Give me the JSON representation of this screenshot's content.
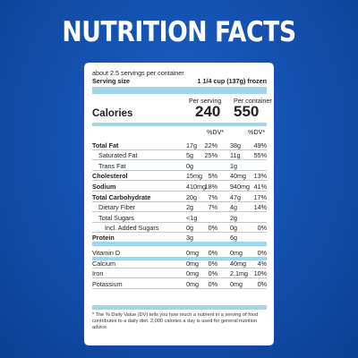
{
  "header": {
    "title": "NUTRITION FACTS"
  },
  "label": {
    "servings": "about 2.5 servings per container",
    "serving_size_label": "Serving size",
    "serving_size_value": "1 1/4 cup (137g) frozen",
    "per_serving": "Per serving",
    "per_container": "Per container",
    "calories_label": "Calories",
    "calories_serving": "240",
    "calories_container": "550",
    "dv_header_1": "%DV*",
    "dv_header_2": "%DV*",
    "rows": [
      {
        "name": "Total Fat",
        "a": "17g",
        "b": "22%",
        "c": "38g",
        "d": "49%"
      },
      {
        "name": "Saturated Fat",
        "a": "5g",
        "b": "25%",
        "c": "11g",
        "d": "55%"
      },
      {
        "name": "Trans Fat",
        "a": "0g",
        "b": "",
        "c": "1g",
        "d": ""
      },
      {
        "name": "Cholesterol",
        "a": "15mg",
        "b": "5%",
        "c": "40mg",
        "d": "13%"
      },
      {
        "name": "Sodium",
        "a": "410mg",
        "b": "18%",
        "c": "940mg",
        "d": "41%"
      },
      {
        "name": "Total Carbohydrate",
        "a": "20g",
        "b": "7%",
        "c": "47g",
        "d": "17%"
      },
      {
        "name": "Dietary Fiber",
        "a": "2g",
        "b": "7%",
        "c": "4g",
        "d": "14%"
      },
      {
        "name": "Total Sugars",
        "a": "<1g",
        "b": "",
        "c": "2g",
        "d": ""
      },
      {
        "name": "Incl. Added Sugars",
        "a": "0g",
        "b": "0%",
        "c": "0g",
        "d": "0%"
      },
      {
        "name": "Protein",
        "a": "3g",
        "b": "",
        "c": "6g",
        "d": ""
      },
      {
        "name": "Vitamin D",
        "a": "0mg",
        "b": "0%",
        "c": "0mg",
        "d": "0%"
      },
      {
        "name": "Calcium",
        "a": "0mg",
        "b": "0%",
        "c": "40mg",
        "d": "4%"
      },
      {
        "name": "Iron",
        "a": "0mg",
        "b": "0%",
        "c": "2.1mg",
        "d": "10%"
      },
      {
        "name": "Potassium",
        "a": "0mg",
        "b": "0%",
        "c": "0mg",
        "d": "0%"
      }
    ],
    "footnote": "* The % Daily Value (DV) tells you how much a nutrient in a serving of food contributes to a daily diet. 2,000 calories a day is used for general nutrition advice."
  },
  "colors": {
    "background": "#1554b4",
    "bar": "#9fd6ec",
    "panel": "#ffffff"
  }
}
